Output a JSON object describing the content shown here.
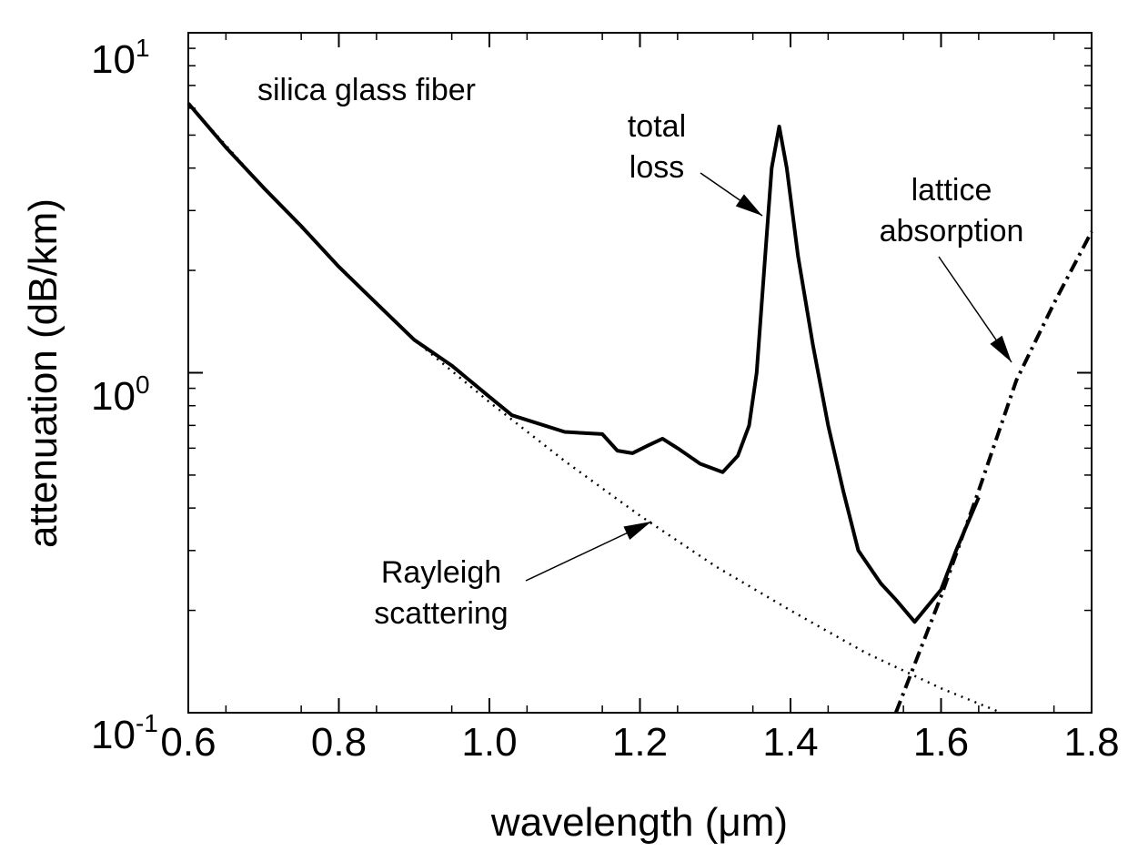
{
  "chart_data": {
    "type": "line",
    "xlabel": "wavelength (μm)",
    "ylabel": "attenuation (dB/km)",
    "xlim": [
      0.6,
      1.8
    ],
    "ylim": [
      0.1,
      10
    ],
    "y_scale": "log",
    "x_ticks": [
      "0.6",
      "0.8",
      "1.0",
      "1.2",
      "1.4",
      "1.6",
      "1.8"
    ],
    "y_ticks": [
      {
        "value": 10,
        "base": "10",
        "exp": "1"
      },
      {
        "value": 1,
        "base": "10",
        "exp": "0"
      },
      {
        "value": 0.1,
        "base": "10",
        "exp": "-1"
      }
    ],
    "series": [
      {
        "name": "total loss",
        "style": "solid",
        "points": [
          [
            0.6,
            6.2
          ],
          [
            0.65,
            4.6
          ],
          [
            0.7,
            3.5
          ],
          [
            0.75,
            2.7
          ],
          [
            0.8,
            2.05
          ],
          [
            0.85,
            1.6
          ],
          [
            0.9,
            1.25
          ],
          [
            0.95,
            1.05
          ],
          [
            1.0,
            0.85
          ],
          [
            1.03,
            0.75
          ],
          [
            1.1,
            0.67
          ],
          [
            1.15,
            0.66
          ],
          [
            1.17,
            0.59
          ],
          [
            1.19,
            0.58
          ],
          [
            1.21,
            0.61
          ],
          [
            1.23,
            0.64
          ],
          [
            1.25,
            0.6
          ],
          [
            1.28,
            0.54
          ],
          [
            1.31,
            0.51
          ],
          [
            1.33,
            0.57
          ],
          [
            1.345,
            0.7
          ],
          [
            1.355,
            1.0
          ],
          [
            1.365,
            2.0
          ],
          [
            1.375,
            4.0
          ],
          [
            1.385,
            5.3
          ],
          [
            1.395,
            4.0
          ],
          [
            1.41,
            2.2
          ],
          [
            1.43,
            1.2
          ],
          [
            1.45,
            0.7
          ],
          [
            1.47,
            0.45
          ],
          [
            1.49,
            0.3
          ],
          [
            1.52,
            0.24
          ],
          [
            1.54,
            0.215
          ],
          [
            1.565,
            0.185
          ],
          [
            1.6,
            0.23
          ],
          [
            1.62,
            0.3
          ],
          [
            1.65,
            0.43
          ]
        ]
      },
      {
        "name": "Rayleigh scattering",
        "style": "dotted",
        "points": [
          [
            0.6,
            6.2
          ],
          [
            0.7,
            3.5
          ],
          [
            0.8,
            2.05
          ],
          [
            0.9,
            1.25
          ],
          [
            1.0,
            0.82
          ],
          [
            1.1,
            0.55
          ],
          [
            1.2,
            0.38
          ],
          [
            1.3,
            0.27
          ],
          [
            1.4,
            0.2
          ],
          [
            1.5,
            0.15
          ],
          [
            1.6,
            0.118
          ],
          [
            1.68,
            0.1
          ]
        ]
      },
      {
        "name": "lattice absorption",
        "style": "dashed",
        "points": [
          [
            1.54,
            0.1
          ],
          [
            1.6,
            0.22
          ],
          [
            1.65,
            0.45
          ],
          [
            1.7,
            0.95
          ],
          [
            1.75,
            1.6
          ],
          [
            1.8,
            2.6
          ]
        ]
      }
    ],
    "annotations": [
      {
        "id": "fiber",
        "text": "silica glass fiber"
      },
      {
        "id": "total",
        "text": "total\nloss"
      },
      {
        "id": "lattice",
        "text": "lattice\nabsorption"
      },
      {
        "id": "rayleigh",
        "text": "Rayleigh\nscattering"
      }
    ]
  }
}
